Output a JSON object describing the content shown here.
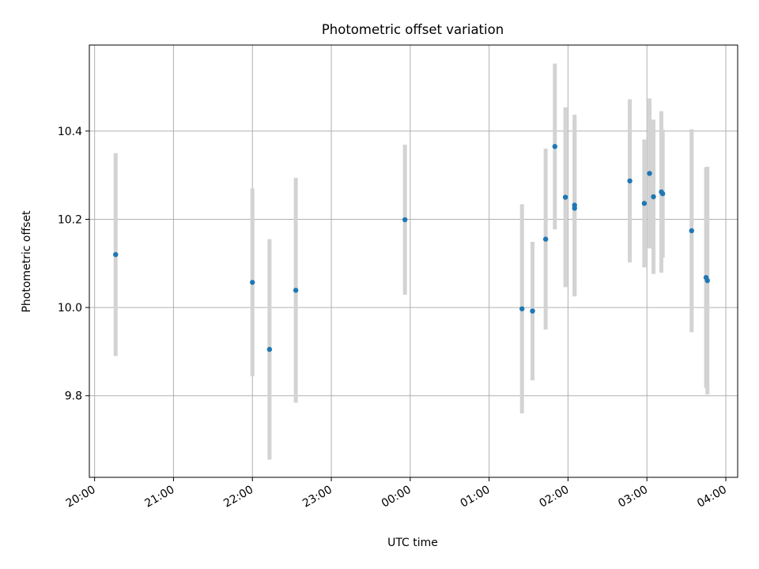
{
  "chart_data": {
    "type": "scatter",
    "title": "Photometric offset variation",
    "xlabel": "UTC time",
    "ylabel": "Photometric offset",
    "x_ticks": [
      "20:00",
      "21:00",
      "22:00",
      "23:00",
      "00:00",
      "01:00",
      "02:00",
      "03:00",
      "04:00"
    ],
    "y_ticks": [
      "9.8",
      "10.0",
      "10.2",
      "10.4"
    ],
    "x_range": [
      "19:56",
      "04:09"
    ],
    "ylim": [
      9.615,
      10.595
    ],
    "grid": true,
    "errorbars": true,
    "colors": {
      "points": "#1f77b4",
      "errorbars": "#d3d3d3",
      "grid": "#b0b0b0",
      "axes": "#000000"
    },
    "series": [
      {
        "points": [
          {
            "x": "20:16",
            "y": 10.12,
            "yerr": 0.23
          },
          {
            "x": "22:00",
            "y": 10.057,
            "yerr": 0.213
          },
          {
            "x": "22:13",
            "y": 9.905,
            "yerr": 0.25
          },
          {
            "x": "22:33",
            "y": 10.039,
            "yerr": 0.255
          },
          {
            "x": "23:56",
            "y": 10.199,
            "yerr": 0.17
          },
          {
            "x": "01:25",
            "y": 9.997,
            "yerr": 0.237
          },
          {
            "x": "01:33",
            "y": 9.992,
            "yerr": 0.157
          },
          {
            "x": "01:43",
            "y": 10.155,
            "yerr": 0.205
          },
          {
            "x": "01:50",
            "y": 10.365,
            "yerr": 0.188
          },
          {
            "x": "01:58",
            "y": 10.25,
            "yerr": 0.204
          },
          {
            "x": "02:05",
            "y": 10.225,
            "yerr": 0.2
          },
          {
            "x": "02:05",
            "y": 10.232,
            "yerr": 0.205
          },
          {
            "x": "02:47",
            "y": 10.287,
            "yerr": 0.185
          },
          {
            "x": "02:58",
            "y": 10.236,
            "yerr": 0.145
          },
          {
            "x": "03:02",
            "y": 10.304,
            "yerr": 0.17
          },
          {
            "x": "03:05",
            "y": 10.251,
            "yerr": 0.175
          },
          {
            "x": "03:11",
            "y": 10.262,
            "yerr": 0.183
          },
          {
            "x": "03:12",
            "y": 10.258,
            "yerr": 0.145
          },
          {
            "x": "03:34",
            "y": 10.174,
            "yerr": 0.23
          },
          {
            "x": "03:45",
            "y": 10.068,
            "yerr": 0.25
          },
          {
            "x": "03:46",
            "y": 10.061,
            "yerr": 0.258
          }
        ]
      }
    ]
  }
}
